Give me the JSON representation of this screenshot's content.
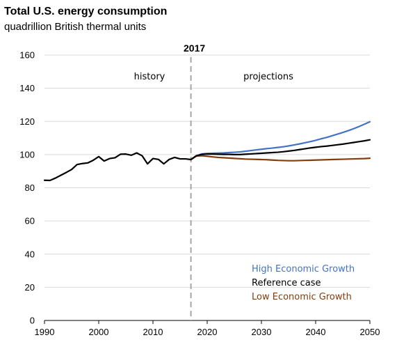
{
  "chart_data": {
    "type": "line",
    "title": "Total U.S. energy consumption",
    "subtitle": "quadrillion British thermal units",
    "xlim": [
      1990,
      2050
    ],
    "ylim": [
      0,
      160
    ],
    "x_ticks": [
      1990,
      2000,
      2010,
      2020,
      2030,
      2040,
      2050
    ],
    "y_ticks": [
      0,
      20,
      40,
      60,
      80,
      100,
      120,
      140,
      160
    ],
    "grid": true,
    "divider": {
      "x": 2017,
      "label": "2017"
    },
    "annotations": {
      "history": "history",
      "projections": "projections"
    },
    "history": {
      "x": [
        1990,
        1991,
        1992,
        1993,
        1994,
        1995,
        1996,
        1997,
        1998,
        1999,
        2000,
        2001,
        2002,
        2003,
        2004,
        2005,
        2006,
        2007,
        2008,
        2009,
        2010,
        2011,
        2012,
        2013,
        2014,
        2015,
        2016,
        2017
      ],
      "values": [
        84.5,
        84.4,
        85.8,
        87.5,
        89.2,
        91.0,
        94.0,
        94.6,
        95.0,
        96.6,
        98.8,
        96.1,
        97.6,
        98.1,
        100.2,
        100.3,
        99.6,
        101.0,
        99.3,
        94.4,
        97.6,
        97.1,
        94.4,
        97.1,
        98.3,
        97.4,
        97.4,
        97.0
      ],
      "color": "#000000"
    },
    "series": [
      {
        "name": "High Economic Growth",
        "color": "#4472C4",
        "x": [
          2017,
          2018,
          2019,
          2020,
          2021,
          2022,
          2023,
          2024,
          2025,
          2026,
          2027,
          2028,
          2029,
          2030,
          2031,
          2032,
          2033,
          2034,
          2035,
          2036,
          2037,
          2038,
          2039,
          2040,
          2041,
          2042,
          2043,
          2044,
          2045,
          2046,
          2047,
          2048,
          2049,
          2050
        ],
        "values": [
          97.0,
          99.3,
          100.4,
          100.7,
          100.8,
          100.9,
          101.0,
          101.2,
          101.4,
          101.6,
          102.0,
          102.4,
          102.8,
          103.2,
          103.6,
          103.9,
          104.3,
          104.7,
          105.2,
          105.8,
          106.4,
          107.1,
          107.8,
          108.6,
          109.5,
          110.3,
          111.3,
          112.3,
          113.3,
          114.4,
          115.6,
          116.9,
          118.3,
          119.8
        ]
      },
      {
        "name": "Reference case",
        "color": "#000000",
        "x": [
          2017,
          2018,
          2019,
          2020,
          2021,
          2022,
          2023,
          2024,
          2025,
          2026,
          2027,
          2028,
          2029,
          2030,
          2031,
          2032,
          2033,
          2034,
          2035,
          2036,
          2037,
          2038,
          2039,
          2040,
          2041,
          2042,
          2043,
          2044,
          2045,
          2046,
          2047,
          2048,
          2049,
          2050
        ],
        "values": [
          97.0,
          99.3,
          100.1,
          100.3,
          100.3,
          100.2,
          100.1,
          100.1,
          100.0,
          100.0,
          100.2,
          100.4,
          100.6,
          100.8,
          101.0,
          101.2,
          101.4,
          101.7,
          102.1,
          102.5,
          103.0,
          103.5,
          104.0,
          104.4,
          104.8,
          105.1,
          105.5,
          105.9,
          106.3,
          106.8,
          107.3,
          107.8,
          108.3,
          108.9
        ]
      },
      {
        "name": "Low Economic Growth",
        "color": "#843C0C",
        "x": [
          2017,
          2018,
          2019,
          2020,
          2021,
          2022,
          2023,
          2024,
          2025,
          2026,
          2027,
          2028,
          2029,
          2030,
          2031,
          2032,
          2033,
          2034,
          2035,
          2036,
          2037,
          2038,
          2039,
          2040,
          2041,
          2042,
          2043,
          2044,
          2045,
          2046,
          2047,
          2048,
          2049,
          2050
        ],
        "values": [
          97.0,
          99.1,
          99.3,
          99.0,
          98.6,
          98.3,
          98.1,
          97.9,
          97.7,
          97.5,
          97.3,
          97.2,
          97.1,
          97.0,
          96.9,
          96.7,
          96.5,
          96.4,
          96.3,
          96.3,
          96.4,
          96.5,
          96.6,
          96.7,
          96.8,
          96.9,
          97.0,
          97.1,
          97.2,
          97.3,
          97.4,
          97.5,
          97.6,
          97.8
        ]
      }
    ]
  }
}
